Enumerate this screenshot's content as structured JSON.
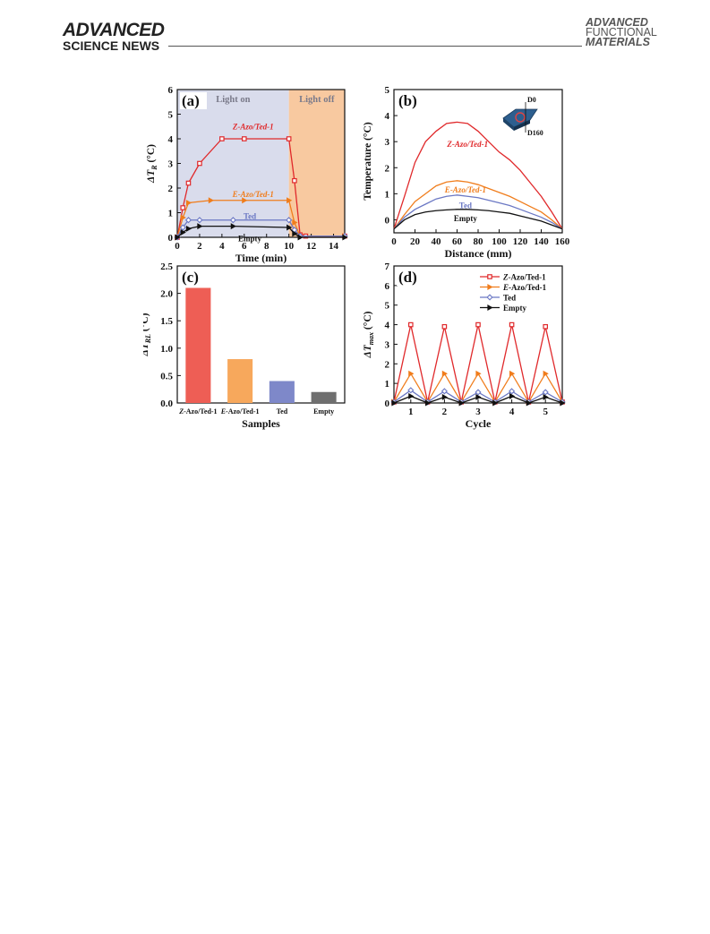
{
  "header": {
    "journal_left_line1": "ADVANCED",
    "journal_left_line2": "SCIENCE NEWS",
    "journal_right_line1": "ADVANCED",
    "journal_right_line2": "FUNCTIONAL",
    "journal_right_line3": "MATERIALS"
  },
  "chart_data": [
    {
      "panel": "(a)",
      "type": "line",
      "xlabel": "Time (min)",
      "ylabel": "ΔT_R (°C)",
      "xlim": [
        0,
        15
      ],
      "ylim": [
        0,
        6
      ],
      "xticks": [
        0,
        2,
        4,
        6,
        8,
        10,
        12,
        14
      ],
      "yticks": [
        0,
        1,
        2,
        3,
        4,
        5,
        6
      ],
      "regions": [
        {
          "label": "Light on",
          "from": 0,
          "to": 10,
          "color": "#d9dcec"
        },
        {
          "label": "Light off",
          "from": 10,
          "to": 15,
          "color": "#f8c9a0"
        }
      ],
      "series": [
        {
          "name": "Z-Azo/Ted-1",
          "color": "#e0292b",
          "marker": "s",
          "x": [
            0,
            0.5,
            1,
            2,
            4,
            6,
            10,
            10.5,
            11,
            11.5,
            15
          ],
          "y": [
            0,
            1.2,
            2.2,
            3.0,
            4.0,
            4.0,
            4.0,
            2.3,
            0.1,
            0.05,
            0.05
          ]
        },
        {
          "name": "E-Azo/Ted-1",
          "color": "#f07d1c",
          "marker": ">",
          "x": [
            0,
            0.5,
            1,
            3,
            6,
            10,
            10.5,
            11,
            15
          ],
          "y": [
            0,
            0.8,
            1.4,
            1.5,
            1.5,
            1.5,
            0.6,
            0.05,
            0.05
          ]
        },
        {
          "name": "Ted",
          "color": "#6b78c4",
          "marker": "d",
          "x": [
            0,
            0.5,
            1,
            2,
            5,
            10,
            10.5,
            11,
            15
          ],
          "y": [
            0,
            0.4,
            0.7,
            0.7,
            0.7,
            0.7,
            0.3,
            0.05,
            0.05
          ]
        },
        {
          "name": "Empty",
          "color": "#111111",
          "marker": ">",
          "x": [
            0,
            0.5,
            1,
            2,
            5,
            10,
            10.5,
            11,
            15
          ],
          "y": [
            0,
            0.2,
            0.35,
            0.45,
            0.45,
            0.4,
            0.15,
            0.0,
            0.0
          ]
        }
      ]
    },
    {
      "panel": "(b)",
      "type": "line",
      "xlabel": "Distance (mm)",
      "ylabel": "Temperature (°C)",
      "xlim": [
        0,
        160
      ],
      "ylim": [
        -0.5,
        5
      ],
      "xticks": [
        0,
        20,
        40,
        60,
        80,
        100,
        120,
        140,
        160
      ],
      "yticks": [
        0,
        1,
        2,
        3,
        4,
        5
      ],
      "inset_labels": [
        "D0",
        "D160"
      ],
      "series": [
        {
          "name": "Z-Azo/Ted-1",
          "color": "#e0292b",
          "x": [
            0,
            10,
            20,
            30,
            40,
            50,
            60,
            70,
            80,
            90,
            100,
            110,
            120,
            130,
            140,
            150,
            160
          ],
          "y": [
            -0.35,
            0.9,
            2.2,
            3.0,
            3.4,
            3.7,
            3.75,
            3.7,
            3.4,
            3.0,
            2.6,
            2.3,
            1.9,
            1.4,
            0.9,
            0.3,
            -0.35
          ]
        },
        {
          "name": "E-Azo/Ted-1",
          "color": "#f07d1c",
          "x": [
            0,
            10,
            20,
            30,
            40,
            50,
            60,
            70,
            80,
            90,
            100,
            110,
            120,
            130,
            140,
            150,
            160
          ],
          "y": [
            -0.35,
            0.2,
            0.7,
            1.0,
            1.3,
            1.45,
            1.5,
            1.45,
            1.35,
            1.2,
            1.05,
            0.9,
            0.7,
            0.5,
            0.3,
            0.0,
            -0.35
          ]
        },
        {
          "name": "Ted",
          "color": "#6b78c4",
          "x": [
            0,
            10,
            20,
            30,
            40,
            50,
            60,
            70,
            80,
            90,
            100,
            110,
            120,
            130,
            140,
            150,
            160
          ],
          "y": [
            -0.35,
            0.1,
            0.4,
            0.6,
            0.8,
            0.9,
            0.95,
            0.9,
            0.85,
            0.75,
            0.65,
            0.55,
            0.4,
            0.25,
            0.1,
            -0.1,
            -0.35
          ]
        },
        {
          "name": "Empty",
          "color": "#111111",
          "x": [
            0,
            10,
            20,
            30,
            40,
            50,
            60,
            70,
            80,
            90,
            100,
            110,
            120,
            130,
            140,
            150,
            160
          ],
          "y": [
            -0.35,
            0.0,
            0.2,
            0.3,
            0.35,
            0.38,
            0.4,
            0.4,
            0.38,
            0.35,
            0.3,
            0.25,
            0.15,
            0.05,
            -0.05,
            -0.2,
            -0.35
          ]
        }
      ]
    },
    {
      "panel": "(c)",
      "type": "bar",
      "xlabel": "Samples",
      "ylabel": "ΔT_RL (°C)",
      "ylim": [
        0,
        2.5
      ],
      "yticks": [
        0.0,
        0.5,
        1.0,
        1.5,
        2.0,
        2.5
      ],
      "categories": [
        "Z-Azo/Ted-1",
        "E-Azo/Ted-1",
        "Ted",
        "Empty"
      ],
      "values": [
        2.1,
        0.8,
        0.4,
        0.2
      ],
      "colors": [
        "#ee5e55",
        "#f7a85c",
        "#7e88c9",
        "#6f6f6f"
      ]
    },
    {
      "panel": "(d)",
      "type": "line",
      "xlabel": "Cycle",
      "ylabel": "ΔT_max (°C)",
      "xlim": [
        0.5,
        5.5
      ],
      "ylim": [
        0,
        7
      ],
      "xticks": [
        1,
        2,
        3,
        4,
        5
      ],
      "yticks": [
        0,
        1,
        2,
        3,
        4,
        5,
        6,
        7
      ],
      "legend": "top-right",
      "series": [
        {
          "name": "Z-Azo/Ted-1",
          "color": "#e0292b",
          "marker": "s",
          "x": [
            0.5,
            1,
            1.5,
            2,
            2.5,
            3,
            3.5,
            4,
            4.5,
            5,
            5.5
          ],
          "y": [
            0.05,
            4.0,
            0.05,
            3.9,
            0.05,
            4.0,
            0.05,
            4.0,
            0.05,
            3.9,
            0.05
          ]
        },
        {
          "name": "E-Azo/Ted-1",
          "color": "#f07d1c",
          "marker": ">",
          "x": [
            0.5,
            1,
            1.5,
            2,
            2.5,
            3,
            3.5,
            4,
            4.5,
            5,
            5.5
          ],
          "y": [
            0.05,
            1.5,
            0.05,
            1.5,
            0.05,
            1.5,
            0.05,
            1.5,
            0.05,
            1.5,
            0.05
          ]
        },
        {
          "name": "Ted",
          "color": "#6b78c4",
          "marker": "d",
          "x": [
            0.5,
            1,
            1.5,
            2,
            2.5,
            3,
            3.5,
            4,
            4.5,
            5,
            5.5
          ],
          "y": [
            0.05,
            0.65,
            0.05,
            0.6,
            0.05,
            0.55,
            0.05,
            0.6,
            0.05,
            0.55,
            0.05
          ]
        },
        {
          "name": "Empty",
          "color": "#111111",
          "marker": ">",
          "x": [
            0.5,
            1,
            1.5,
            2,
            2.5,
            3,
            3.5,
            4,
            4.5,
            5,
            5.5
          ],
          "y": [
            0.0,
            0.35,
            0.0,
            0.3,
            0.0,
            0.3,
            0.0,
            0.35,
            0.0,
            0.3,
            0.0
          ]
        }
      ]
    }
  ]
}
